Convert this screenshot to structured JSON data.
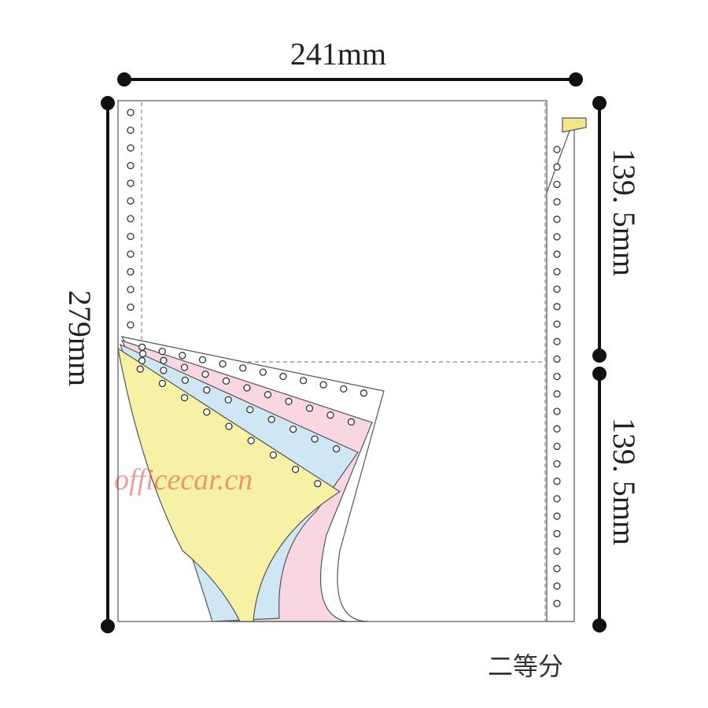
{
  "dimensions": {
    "width": "241mm",
    "height": "279mm",
    "upper_half": "139. 5mm",
    "lower_half": "139. 5mm"
  },
  "caption": "二等分",
  "watermark": "officecar.cn"
}
